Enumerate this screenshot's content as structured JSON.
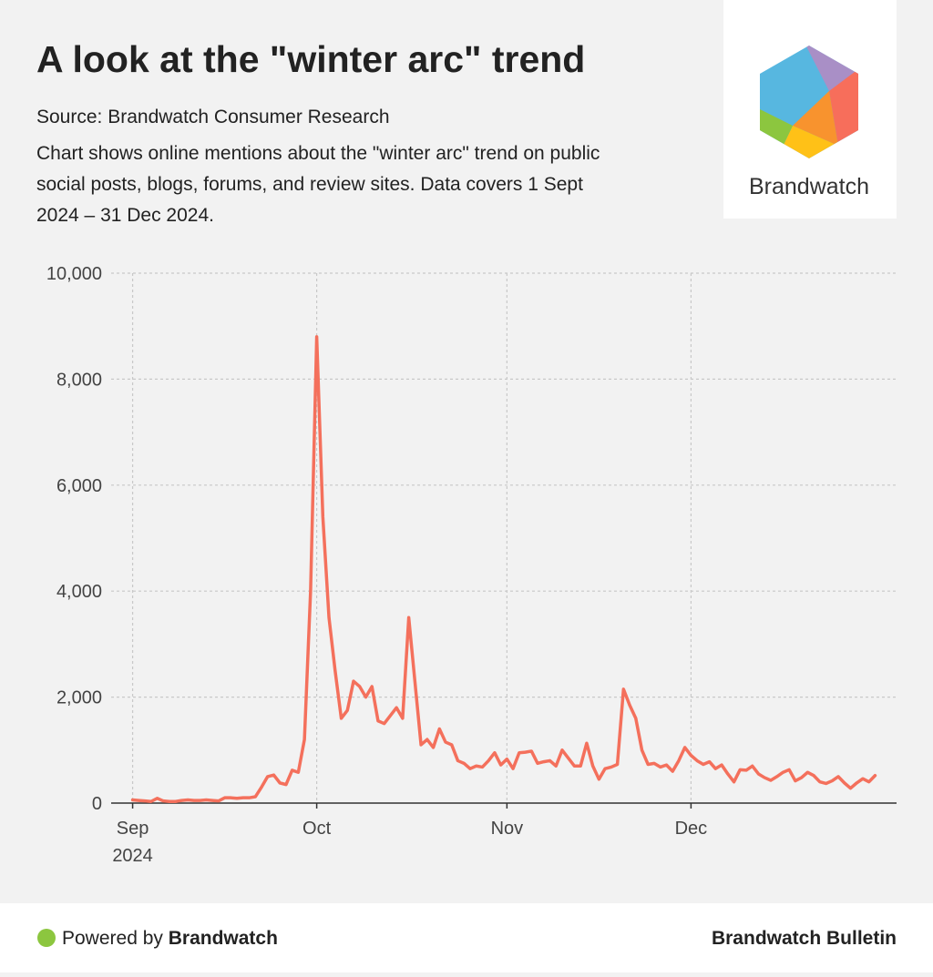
{
  "chart_data": {
    "type": "line",
    "title": "A look at the \"winter arc\" trend",
    "source": "Source: Brandwatch Consumer Research",
    "subtitle": [
      "Chart shows online mentions about the \"winter arc\" trend on public",
      "social posts, blogs, forums, and review sites. Data covers 1 Sept",
      "2024 – 31 Dec 2024."
    ],
    "logo_text": "Brandwatch",
    "footer_left_prefix": "Powered by ",
    "footer_left_brand": "Brandwatch",
    "footer_right": "Brandwatch Bulletin",
    "color": "#f4705c",
    "grid": true,
    "x": [
      0,
      1,
      2,
      3,
      4,
      5,
      6,
      7,
      8,
      9,
      10,
      11,
      12,
      13,
      14,
      15,
      16,
      17,
      18,
      19,
      20,
      21,
      22,
      23,
      24,
      25,
      26,
      27,
      28,
      29,
      30,
      31,
      32,
      33,
      34,
      35,
      36,
      37,
      38,
      39,
      40,
      41,
      42,
      43,
      44,
      45,
      46,
      47,
      48,
      49,
      50,
      51,
      52,
      53,
      54,
      55,
      56,
      57,
      58,
      59,
      60,
      61,
      62,
      63,
      64,
      65,
      66,
      67,
      68,
      69,
      70,
      71,
      72,
      73,
      74,
      75,
      76,
      77,
      78,
      79,
      80,
      81,
      82,
      83,
      84,
      85,
      86,
      87,
      88,
      89,
      90,
      91,
      92,
      93,
      94,
      95,
      96,
      97,
      98,
      99,
      100,
      101,
      102,
      103,
      104,
      105,
      106,
      107,
      108,
      109,
      110,
      111,
      112,
      113,
      114,
      115,
      116,
      117,
      118,
      119,
      120,
      121
    ],
    "values": [
      60,
      50,
      40,
      30,
      90,
      40,
      30,
      30,
      50,
      60,
      50,
      50,
      60,
      50,
      40,
      100,
      100,
      90,
      100,
      100,
      120,
      300,
      500,
      530,
      380,
      350,
      620,
      580,
      1200,
      4000,
      8800,
      5400,
      3500,
      2500,
      1600,
      1750,
      2300,
      2200,
      2000,
      2200,
      1550,
      1500,
      1650,
      1800,
      1600,
      3500,
      2300,
      1100,
      1200,
      1050,
      1400,
      1150,
      1100,
      800,
      750,
      650,
      700,
      680,
      800,
      950,
      720,
      830,
      650,
      950,
      960,
      980,
      750,
      780,
      800,
      700,
      1000,
      850,
      700,
      700,
      1130,
      700,
      450,
      650,
      680,
      730,
      2150,
      1850,
      1600,
      1000,
      730,
      750,
      680,
      720,
      600,
      800,
      1050,
      900,
      800,
      730,
      780,
      650,
      720,
      550,
      400,
      630,
      620,
      700,
      550,
      480,
      430,
      500,
      580,
      630,
      420,
      480,
      580,
      520,
      400,
      370,
      420,
      500,
      380,
      280,
      380,
      460,
      400,
      520
    ],
    "xlim": [
      -3.5,
      124.5
    ],
    "xticks": [
      {
        "value": 0,
        "label": "Sep",
        "sublabel": "2024"
      },
      {
        "value": 30,
        "label": "Oct"
      },
      {
        "value": 61,
        "label": "Nov"
      },
      {
        "value": 91,
        "label": "Dec"
      }
    ],
    "ylim": [
      0,
      10000
    ],
    "yticks": [
      0,
      {
        "value": 2000,
        "label": "2,000"
      },
      {
        "value": 4000,
        "label": "4,000"
      },
      {
        "value": 6000,
        "label": "6,000"
      },
      {
        "value": 8000,
        "label": "8,000"
      },
      {
        "value": 10000,
        "label": "10,000"
      }
    ]
  }
}
